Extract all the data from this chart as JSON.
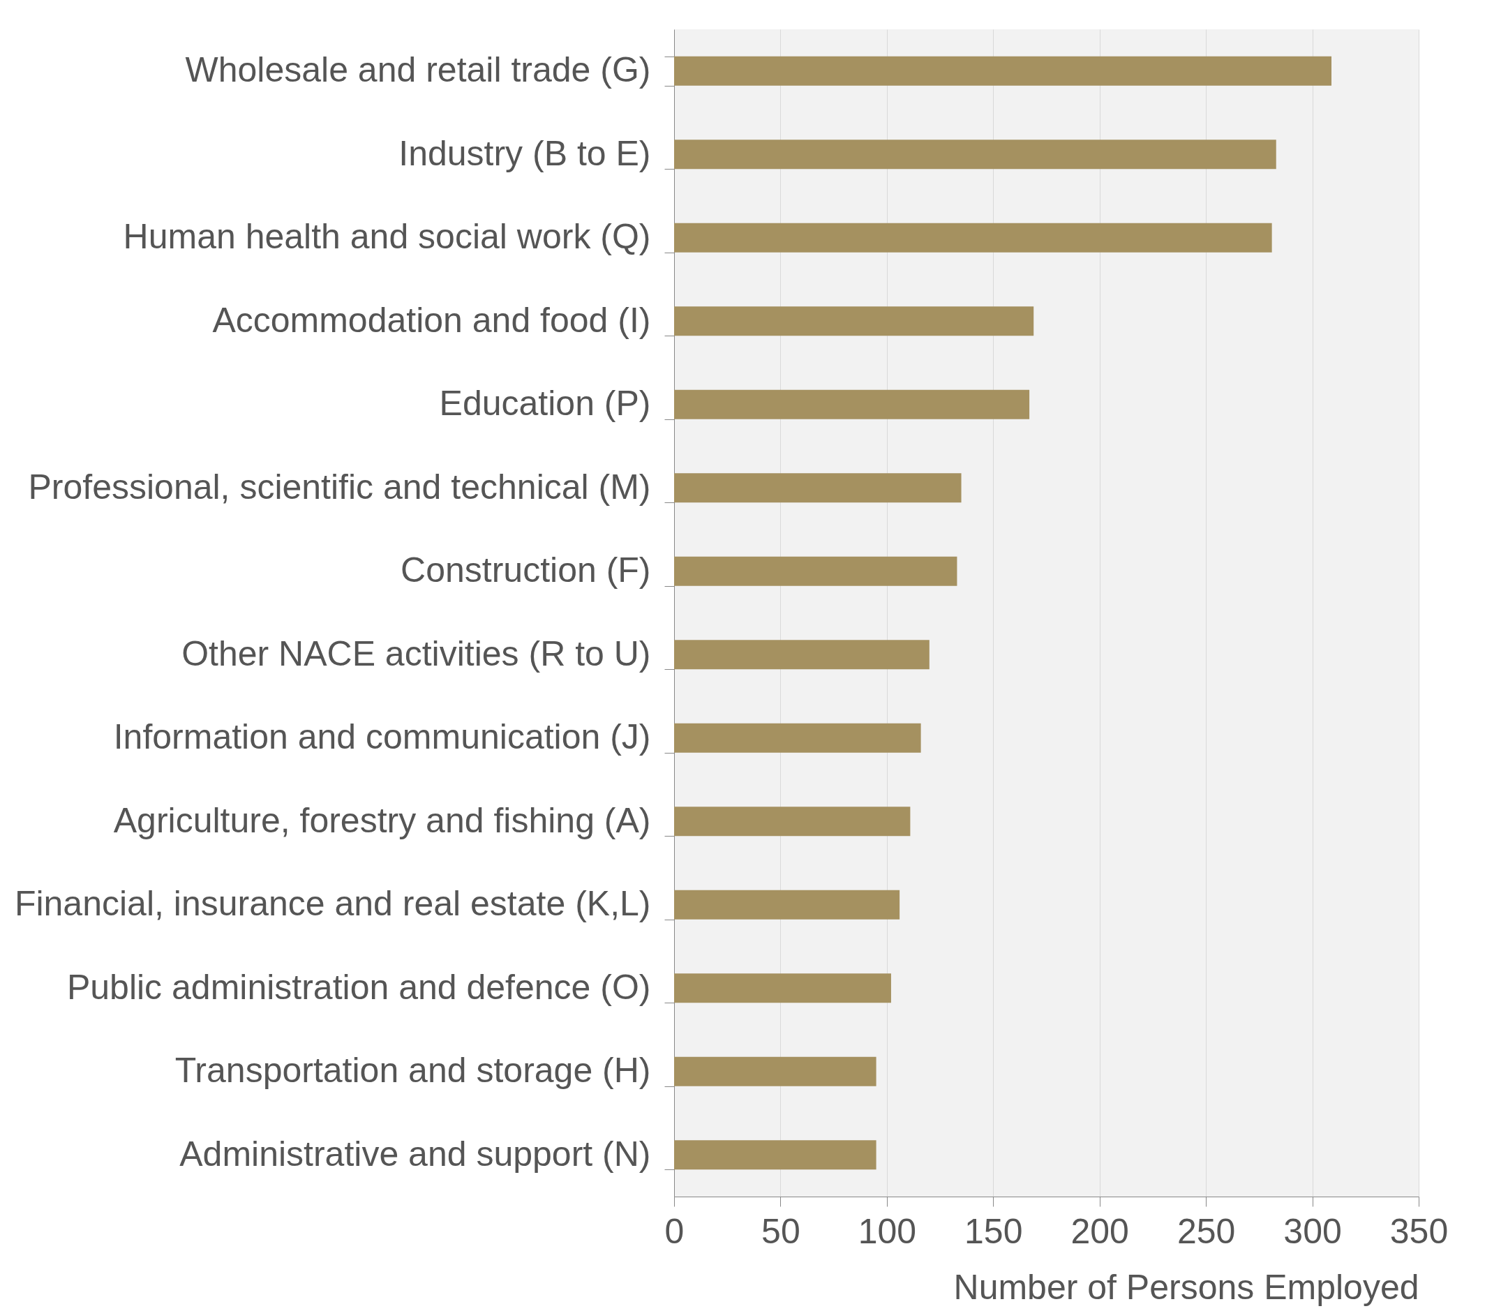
{
  "chart_data": {
    "type": "bar",
    "orientation": "horizontal",
    "categories": [
      "Wholesale and retail trade (G)",
      "Industry (B to E)",
      "Human health and social work (Q)",
      "Accommodation and food (I)",
      "Education (P)",
      "Professional, scientific and technical (M)",
      "Construction (F)",
      "Other NACE activities (R to U)",
      "Information and communication (J)",
      "Agriculture, forestry and fishing (A)",
      "Financial, insurance and real estate (K,L)",
      "Public administration and defence (O)",
      "Transportation and storage (H)",
      "Administrative and support (N)"
    ],
    "values": [
      309,
      283,
      281,
      169,
      167,
      135,
      133,
      120,
      116,
      111,
      106,
      102,
      95,
      95
    ],
    "color": "#a59160",
    "xlabel": "Number of Persons Employed",
    "xlim": [
      0,
      350
    ],
    "xticks": [
      0,
      50,
      100,
      150,
      200,
      250,
      300,
      350
    ],
    "grid": "x"
  }
}
